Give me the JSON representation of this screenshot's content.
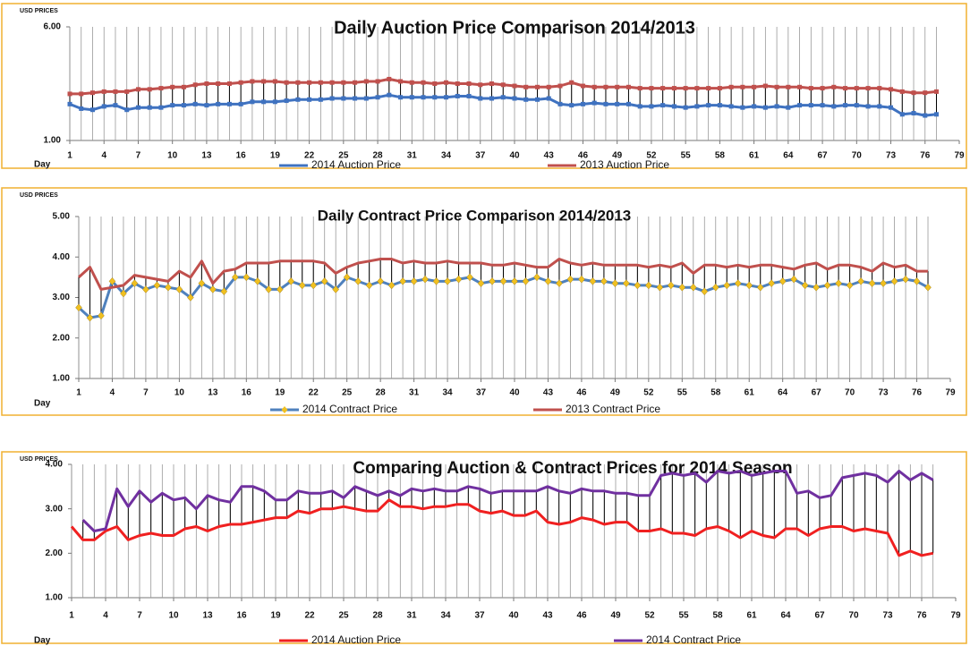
{
  "chart_data": [
    {
      "type": "line",
      "title": "Daily Auction Price Comparison 2014/2013",
      "ylabel": "USD PRICES",
      "xlabel": "Day",
      "x": [
        1,
        2,
        3,
        4,
        5,
        6,
        7,
        8,
        9,
        10,
        11,
        12,
        13,
        14,
        15,
        16,
        17,
        18,
        19,
        20,
        21,
        22,
        23,
        24,
        25,
        26,
        27,
        28,
        29,
        30,
        31,
        32,
        33,
        34,
        35,
        36,
        37,
        38,
        39,
        40,
        41,
        42,
        43,
        44,
        45,
        46,
        47,
        48,
        49,
        50,
        51,
        52,
        53,
        54,
        55,
        56,
        57,
        58,
        59,
        60,
        61,
        62,
        63,
        64,
        65,
        66,
        67,
        68,
        69,
        70,
        71,
        72,
        73,
        74,
        75,
        76,
        77
      ],
      "xlim": [
        1,
        79
      ],
      "xticks": [
        1,
        4,
        7,
        10,
        13,
        16,
        19,
        22,
        25,
        28,
        31,
        34,
        37,
        40,
        43,
        46,
        49,
        52,
        55,
        58,
        61,
        64,
        67,
        70,
        73,
        76,
        79
      ],
      "ylim": [
        1,
        6
      ],
      "yticks": [
        {
          "value": 1,
          "label": "1.00"
        },
        {
          "value": 6,
          "label": "6.00"
        }
      ],
      "grid": "x",
      "hi_lo_lines": true,
      "legend": "bottom",
      "series": [
        {
          "name": "2014 Auction Price",
          "color": "#3f72c0",
          "marker": "square",
          "values": [
            2.6,
            2.4,
            2.35,
            2.5,
            2.55,
            2.35,
            2.45,
            2.45,
            2.45,
            2.55,
            2.55,
            2.6,
            2.55,
            2.6,
            2.6,
            2.6,
            2.7,
            2.7,
            2.7,
            2.75,
            2.8,
            2.8,
            2.8,
            2.85,
            2.85,
            2.85,
            2.85,
            2.9,
            3.0,
            2.9,
            2.9,
            2.9,
            2.9,
            2.9,
            2.95,
            2.95,
            2.85,
            2.85,
            2.9,
            2.85,
            2.8,
            2.8,
            2.85,
            2.6,
            2.55,
            2.6,
            2.65,
            2.6,
            2.6,
            2.6,
            2.5,
            2.5,
            2.55,
            2.5,
            2.45,
            2.5,
            2.55,
            2.55,
            2.5,
            2.45,
            2.5,
            2.45,
            2.5,
            2.45,
            2.55,
            2.55,
            2.55,
            2.5,
            2.55,
            2.55,
            2.5,
            2.5,
            2.45,
            2.15,
            2.2,
            2.1,
            2.15
          ]
        },
        {
          "name": "2013 Auction Price",
          "color": "#c0504d",
          "marker": "square",
          "values": [
            3.05,
            3.05,
            3.1,
            3.15,
            3.15,
            3.15,
            3.25,
            3.25,
            3.3,
            3.35,
            3.35,
            3.45,
            3.5,
            3.5,
            3.5,
            3.55,
            3.6,
            3.6,
            3.6,
            3.55,
            3.55,
            3.55,
            3.55,
            3.55,
            3.55,
            3.55,
            3.6,
            3.6,
            3.7,
            3.6,
            3.55,
            3.55,
            3.5,
            3.55,
            3.5,
            3.5,
            3.45,
            3.5,
            3.45,
            3.4,
            3.35,
            3.35,
            3.35,
            3.4,
            3.55,
            3.4,
            3.35,
            3.35,
            3.35,
            3.35,
            3.3,
            3.3,
            3.3,
            3.3,
            3.3,
            3.3,
            3.3,
            3.3,
            3.35,
            3.35,
            3.35,
            3.4,
            3.35,
            3.35,
            3.35,
            3.3,
            3.3,
            3.35,
            3.3,
            3.3,
            3.3,
            3.3,
            3.25,
            3.15,
            3.1,
            3.1,
            3.15
          ]
        }
      ]
    },
    {
      "type": "line",
      "title": "Daily Contract  Price Comparison  2014/2013",
      "ylabel": "USD PRICES",
      "xlabel": "Day",
      "x": [
        1,
        2,
        3,
        4,
        5,
        6,
        7,
        8,
        9,
        10,
        11,
        12,
        13,
        14,
        15,
        16,
        17,
        18,
        19,
        20,
        21,
        22,
        23,
        24,
        25,
        26,
        27,
        28,
        29,
        30,
        31,
        32,
        33,
        34,
        35,
        36,
        37,
        38,
        39,
        40,
        41,
        42,
        43,
        44,
        45,
        46,
        47,
        48,
        49,
        50,
        51,
        52,
        53,
        54,
        55,
        56,
        57,
        58,
        59,
        60,
        61,
        62,
        63,
        64,
        65,
        66,
        67,
        68,
        69,
        70,
        71,
        72,
        73,
        74,
        75,
        76,
        77
      ],
      "xlim": [
        1,
        79
      ],
      "xticks": [
        1,
        4,
        7,
        10,
        13,
        16,
        19,
        22,
        25,
        28,
        31,
        34,
        37,
        40,
        43,
        46,
        49,
        52,
        55,
        58,
        61,
        64,
        67,
        70,
        73,
        76,
        79
      ],
      "ylim": [
        1,
        5
      ],
      "yticks": [
        {
          "value": 1,
          "label": "1.00"
        },
        {
          "value": 2,
          "label": "2.00"
        },
        {
          "value": 3,
          "label": "3.00"
        },
        {
          "value": 4,
          "label": "4.00"
        },
        {
          "value": 5,
          "label": "5.00"
        }
      ],
      "grid": "x",
      "hi_lo_lines": true,
      "legend": "bottom",
      "series": [
        {
          "name": "2014 Contract Price",
          "color": "#4f81bd",
          "marker": "diamond",
          "marker_color": "#f0c020",
          "values": [
            2.75,
            2.5,
            2.55,
            3.4,
            3.1,
            3.35,
            3.2,
            3.3,
            3.25,
            3.2,
            3.0,
            3.35,
            3.2,
            3.15,
            3.5,
            3.5,
            3.4,
            3.2,
            3.2,
            3.4,
            3.3,
            3.3,
            3.4,
            3.2,
            3.5,
            3.4,
            3.3,
            3.4,
            3.3,
            3.4,
            3.4,
            3.45,
            3.4,
            3.4,
            3.45,
            3.5,
            3.35,
            3.4,
            3.4,
            3.4,
            3.4,
            3.5,
            3.4,
            3.35,
            3.45,
            3.45,
            3.4,
            3.4,
            3.35,
            3.35,
            3.3,
            3.3,
            3.25,
            3.3,
            3.25,
            3.25,
            3.15,
            3.25,
            3.3,
            3.35,
            3.3,
            3.25,
            3.35,
            3.4,
            3.45,
            3.3,
            3.25,
            3.3,
            3.35,
            3.3,
            3.4,
            3.35,
            3.35,
            3.4,
            3.45,
            3.4,
            3.25
          ]
        },
        {
          "name": "2013 Contract Price",
          "color": "#c0504d",
          "values": [
            3.5,
            3.75,
            3.2,
            3.25,
            3.3,
            3.55,
            3.5,
            3.45,
            3.4,
            3.65,
            3.5,
            3.9,
            3.35,
            3.65,
            3.7,
            3.85,
            3.85,
            3.85,
            3.9,
            3.9,
            3.9,
            3.9,
            3.85,
            3.6,
            3.75,
            3.85,
            3.9,
            3.95,
            3.95,
            3.85,
            3.9,
            3.85,
            3.85,
            3.9,
            3.85,
            3.85,
            3.85,
            3.8,
            3.8,
            3.85,
            3.8,
            3.75,
            3.75,
            3.95,
            3.85,
            3.8,
            3.85,
            3.8,
            3.8,
            3.8,
            3.8,
            3.75,
            3.8,
            3.75,
            3.85,
            3.6,
            3.8,
            3.8,
            3.75,
            3.8,
            3.75,
            3.8,
            3.8,
            3.75,
            3.7,
            3.8,
            3.85,
            3.7,
            3.8,
            3.8,
            3.75,
            3.65,
            3.85,
            3.75,
            3.8,
            3.65,
            3.65
          ]
        }
      ]
    },
    {
      "type": "line",
      "title": "Comparing Auction & Contract Prices for 2014 Season",
      "ylabel": "USD PRICES",
      "xlabel": "Day",
      "x": [
        1,
        2,
        3,
        4,
        5,
        6,
        7,
        8,
        9,
        10,
        11,
        12,
        13,
        14,
        15,
        16,
        17,
        18,
        19,
        20,
        21,
        22,
        23,
        24,
        25,
        26,
        27,
        28,
        29,
        30,
        31,
        32,
        33,
        34,
        35,
        36,
        37,
        38,
        39,
        40,
        41,
        42,
        43,
        44,
        45,
        46,
        47,
        48,
        49,
        50,
        51,
        52,
        53,
        54,
        55,
        56,
        57,
        58,
        59,
        60,
        61,
        62,
        63,
        64,
        65,
        66,
        67,
        68,
        69,
        70,
        71,
        72,
        73,
        74,
        75,
        76,
        77
      ],
      "xlim": [
        1,
        79
      ],
      "xticks": [
        1,
        4,
        7,
        10,
        13,
        16,
        19,
        22,
        25,
        28,
        31,
        34,
        37,
        40,
        43,
        46,
        49,
        52,
        55,
        58,
        61,
        64,
        67,
        70,
        73,
        76,
        79
      ],
      "ylim": [
        1,
        4
      ],
      "yticks": [
        {
          "value": 1,
          "label": "1.00"
        },
        {
          "value": 2,
          "label": "2.00"
        },
        {
          "value": 3,
          "label": "3.00"
        },
        {
          "value": 4,
          "label": "4.00"
        }
      ],
      "grid": "x",
      "hi_lo_lines": true,
      "legend": "bottom",
      "series": [
        {
          "name": "2014 Auction Price",
          "color": "#f02020",
          "values": [
            2.6,
            2.3,
            2.3,
            2.5,
            2.6,
            2.3,
            2.4,
            2.45,
            2.4,
            2.4,
            2.55,
            2.6,
            2.5,
            2.6,
            2.65,
            2.65,
            2.7,
            2.75,
            2.8,
            2.8,
            2.95,
            2.9,
            3.0,
            3.0,
            3.05,
            3.0,
            2.95,
            2.95,
            3.2,
            3.05,
            3.05,
            3.0,
            3.05,
            3.05,
            3.1,
            3.1,
            2.95,
            2.9,
            2.95,
            2.85,
            2.85,
            2.95,
            2.7,
            2.65,
            2.7,
            2.8,
            2.75,
            2.65,
            2.7,
            2.7,
            2.5,
            2.5,
            2.55,
            2.45,
            2.45,
            2.4,
            2.55,
            2.6,
            2.5,
            2.35,
            2.5,
            2.4,
            2.35,
            2.55,
            2.55,
            2.4,
            2.55,
            2.6,
            2.6,
            2.5,
            2.55,
            2.5,
            2.45,
            1.95,
            2.05,
            1.95,
            2.0
          ]
        },
        {
          "name": "2014 Contract Price",
          "color": "#7030a0",
          "values": [
            null,
            2.75,
            2.5,
            2.55,
            3.45,
            3.05,
            3.4,
            3.15,
            3.35,
            3.2,
            3.25,
            3.0,
            3.3,
            3.2,
            3.15,
            3.5,
            3.5,
            3.4,
            3.2,
            3.2,
            3.4,
            3.35,
            3.35,
            3.4,
            3.25,
            3.5,
            3.4,
            3.3,
            3.4,
            3.3,
            3.45,
            3.4,
            3.45,
            3.4,
            3.4,
            3.5,
            3.45,
            3.35,
            3.4,
            3.4,
            3.4,
            3.4,
            3.5,
            3.4,
            3.35,
            3.45,
            3.4,
            3.4,
            3.35,
            3.35,
            3.3,
            3.3,
            3.75,
            3.8,
            3.75,
            3.8,
            3.6,
            3.85,
            3.8,
            3.85,
            3.75,
            3.8,
            3.85,
            3.85,
            3.35,
            3.4,
            3.25,
            3.3,
            3.7,
            3.75,
            3.8,
            3.75,
            3.6,
            3.85,
            3.65,
            3.8,
            3.65
          ]
        }
      ]
    }
  ]
}
